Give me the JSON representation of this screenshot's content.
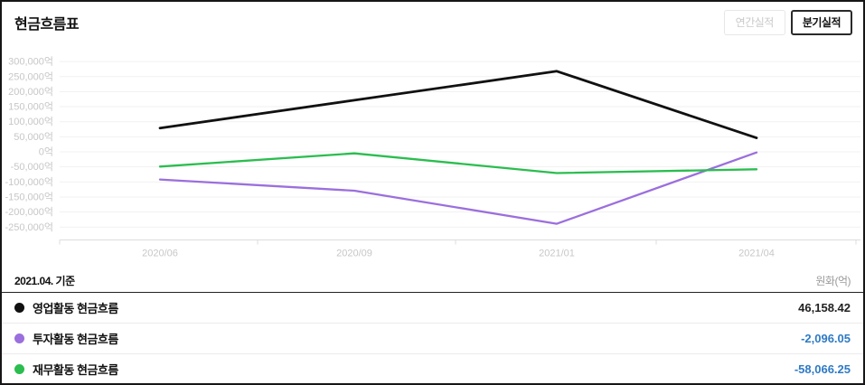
{
  "header": {
    "title": "현금흐름표",
    "annual_button_label": "연간실적",
    "quarterly_button_label": "분기실적"
  },
  "chart_data": {
    "type": "line",
    "x": [
      "2020/06",
      "2020/09",
      "2021/01",
      "2021/04"
    ],
    "series": [
      {
        "name": "영업활동 현금흐름",
        "color": "#111111",
        "values": [
          79000,
          171500,
          268000,
          46158.42
        ]
      },
      {
        "name": "투자활동 현금흐름",
        "color": "#9b6fdd",
        "values": [
          -92000,
          -129000,
          -239000,
          -2096.05
        ]
      },
      {
        "name": "재무활동 현금흐름",
        "color": "#2bbd4f",
        "values": [
          -49000,
          -5000,
          -70500,
          -58066.25
        ]
      }
    ],
    "y_tick_values": [
      300000,
      250000,
      200000,
      150000,
      100000,
      50000,
      0,
      -50000,
      -100000,
      -150000,
      -200000,
      -250000
    ],
    "y_tick_labels": [
      "300,000억",
      "250,000억",
      "200,000억",
      "150,000억",
      "100,000억",
      "50,000억",
      "0억",
      "-50,000억",
      "-100,000억",
      "-150,000억",
      "-200,000억",
      "-250,000억"
    ],
    "unit": "억",
    "ylim": [
      -290000,
      315000
    ],
    "grid": true,
    "legend_position": "bottom-table"
  },
  "table": {
    "as_of": "2021.04. 기준",
    "unit_label": "원화(억)",
    "rows": [
      {
        "label": "영업활동 현금흐름",
        "dot_color": "#111111",
        "value": "46,158.42",
        "value_color": "#222222"
      },
      {
        "label": "투자활동 현금흐름",
        "dot_color": "#9b6fdd",
        "value": "-2,096.05",
        "value_color": "#2e7ac5"
      },
      {
        "label": "재무활동 현금흐름",
        "dot_color": "#2bbd4f",
        "value": "-58,066.25",
        "value_color": "#2e7ac5"
      }
    ]
  },
  "colors": {
    "negative_value": "#2e7ac5",
    "positive_value": "#222222",
    "grid_line": "#f1f1f1",
    "axis_line": "#dcdcdc",
    "axis_text": "#c7c7c7",
    "border": "#161616"
  }
}
